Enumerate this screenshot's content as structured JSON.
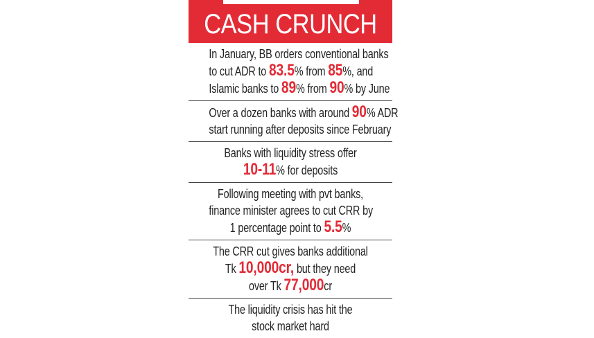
{
  "title": "CASH CRUNCH",
  "accent_color": "#e32b36",
  "sections": [
    {
      "lines": [
        [
          {
            "t": "In January, BB orders conventional banks"
          }
        ],
        [
          {
            "t": "to cut ADR to "
          },
          {
            "t": "83.5",
            "hl": true
          },
          {
            "t": "% from "
          },
          {
            "t": "85",
            "hl": true
          },
          {
            "t": "%, and"
          }
        ],
        [
          {
            "t": "Islamic banks to "
          },
          {
            "t": "89",
            "hl": true
          },
          {
            "t": "% from "
          },
          {
            "t": "90",
            "hl": true
          },
          {
            "t": "% by June"
          }
        ]
      ]
    },
    {
      "lines": [
        [
          {
            "t": "Over a dozen banks with around "
          },
          {
            "t": "90",
            "hl": true
          },
          {
            "t": "% ADR"
          }
        ],
        [
          {
            "t": "start running after deposits since February"
          }
        ]
      ]
    },
    {
      "lines": [
        [
          {
            "t": "Banks with liquidity stress offer"
          }
        ],
        [
          {
            "t": "10-11",
            "hl": true
          },
          {
            "t": "% for deposits"
          }
        ]
      ]
    },
    {
      "lines": [
        [
          {
            "t": "Following meeting with pvt banks,"
          }
        ],
        [
          {
            "t": "finance minister agrees to cut CRR by"
          }
        ],
        [
          {
            "t": "1 percentage point to "
          },
          {
            "t": "5.5",
            "hl": true
          },
          {
            "t": "%"
          }
        ]
      ]
    },
    {
      "lines": [
        [
          {
            "t": "The CRR cut gives banks additional"
          }
        ],
        [
          {
            "t": "Tk "
          },
          {
            "t": "10,000cr,",
            "hl": true
          },
          {
            "t": " but they need"
          }
        ],
        [
          {
            "t": "over Tk "
          },
          {
            "t": "77,000",
            "hl": true
          },
          {
            "t": "cr"
          }
        ]
      ]
    },
    {
      "lines": [
        [
          {
            "t": "The liquidity crisis has hit the"
          }
        ],
        [
          {
            "t": "stock market hard"
          }
        ]
      ]
    }
  ]
}
